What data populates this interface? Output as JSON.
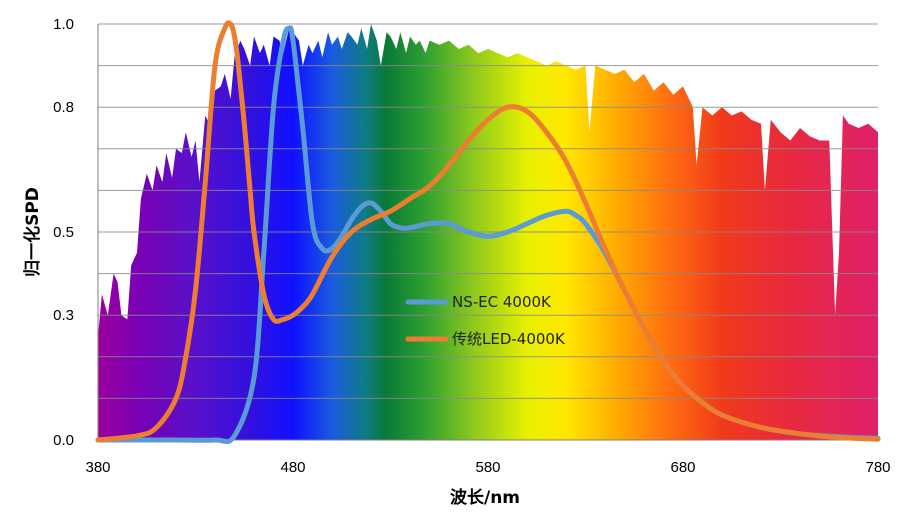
{
  "chart_data": {
    "type": "line",
    "xlabel": "波长/nm",
    "ylabel": "归一化SPD",
    "xlim": [
      380,
      780
    ],
    "ylim": [
      0.0,
      1.0
    ],
    "xticks": [
      "380",
      "480",
      "580",
      "680",
      "780"
    ],
    "yticks": [
      "0.0",
      "0.3",
      "0.5",
      "0.8",
      "1.0"
    ],
    "grid": true,
    "legend_position": "center",
    "background": "visible-spectrum color gradient filled under a solar-like reference spectrum",
    "series": [
      {
        "name": "NS-EC 4000K",
        "color": "#5b9bd5",
        "x": [
          380,
          400,
          420,
          440,
          450,
          460,
          465,
          470,
          475,
          478,
          480,
          485,
          490,
          495,
          500,
          505,
          510,
          515,
          520,
          525,
          530,
          535,
          540,
          550,
          560,
          570,
          580,
          590,
          600,
          610,
          620,
          625,
          630,
          640,
          650,
          660,
          670,
          680,
          690,
          700,
          720,
          740,
          760,
          780
        ],
        "y": [
          0.0,
          0.0,
          0.0,
          0.0,
          0.01,
          0.15,
          0.45,
          0.8,
          0.96,
          0.99,
          0.96,
          0.75,
          0.52,
          0.46,
          0.46,
          0.49,
          0.53,
          0.56,
          0.57,
          0.55,
          0.52,
          0.51,
          0.51,
          0.52,
          0.52,
          0.5,
          0.49,
          0.5,
          0.52,
          0.54,
          0.55,
          0.54,
          0.52,
          0.45,
          0.36,
          0.27,
          0.19,
          0.13,
          0.09,
          0.06,
          0.03,
          0.015,
          0.008,
          0.004
        ]
      },
      {
        "name": "传统LED-4000K",
        "color": "#ed7d31",
        "x": [
          380,
          400,
          410,
          420,
          425,
          430,
          435,
          440,
          445,
          448,
          450,
          452,
          455,
          458,
          460,
          465,
          470,
          475,
          480,
          485,
          490,
          500,
          510,
          520,
          530,
          540,
          550,
          560,
          570,
          580,
          590,
          600,
          610,
          620,
          630,
          640,
          650,
          660,
          670,
          680,
          690,
          700,
          720,
          740,
          760,
          780
        ],
        "y": [
          0.0,
          0.01,
          0.03,
          0.1,
          0.2,
          0.36,
          0.62,
          0.9,
          0.99,
          1.0,
          0.97,
          0.9,
          0.76,
          0.6,
          0.5,
          0.35,
          0.29,
          0.29,
          0.3,
          0.32,
          0.35,
          0.44,
          0.5,
          0.53,
          0.55,
          0.58,
          0.61,
          0.66,
          0.72,
          0.77,
          0.8,
          0.79,
          0.74,
          0.67,
          0.57,
          0.46,
          0.36,
          0.27,
          0.19,
          0.13,
          0.09,
          0.06,
          0.03,
          0.015,
          0.006,
          0.002
        ]
      }
    ],
    "reference_spectrum": {
      "x": [
        380,
        382,
        385,
        388,
        390,
        392,
        395,
        397,
        400,
        402,
        405,
        408,
        410,
        413,
        415,
        418,
        420,
        423,
        425,
        428,
        430,
        432,
        435,
        438,
        440,
        443,
        445,
        448,
        450,
        453,
        455,
        458,
        460,
        463,
        465,
        468,
        470,
        473,
        475,
        478,
        480,
        483,
        485,
        488,
        490,
        493,
        495,
        498,
        500,
        503,
        505,
        508,
        510,
        513,
        515,
        518,
        520,
        523,
        525,
        528,
        530,
        533,
        535,
        538,
        540,
        543,
        545,
        548,
        550,
        555,
        560,
        565,
        570,
        575,
        580,
        585,
        590,
        595,
        600,
        605,
        610,
        615,
        620,
        625,
        630,
        632,
        635,
        640,
        645,
        650,
        655,
        660,
        665,
        670,
        675,
        680,
        685,
        687,
        690,
        695,
        700,
        705,
        710,
        715,
        720,
        722,
        725,
        730,
        735,
        740,
        745,
        750,
        755,
        758,
        760,
        762,
        765,
        770,
        775,
        780
      ],
      "y": [
        0.25,
        0.35,
        0.3,
        0.4,
        0.38,
        0.3,
        0.29,
        0.42,
        0.45,
        0.58,
        0.64,
        0.6,
        0.66,
        0.62,
        0.69,
        0.63,
        0.7,
        0.69,
        0.74,
        0.68,
        0.72,
        0.62,
        0.78,
        0.75,
        0.84,
        0.85,
        0.88,
        0.82,
        0.92,
        0.96,
        0.94,
        0.9,
        0.97,
        0.93,
        0.95,
        0.9,
        0.97,
        0.96,
        0.93,
        0.99,
        0.98,
        0.96,
        0.9,
        0.95,
        0.93,
        0.96,
        0.92,
        0.98,
        0.95,
        0.97,
        0.94,
        0.98,
        0.97,
        0.95,
        0.99,
        0.94,
        1.0,
        0.96,
        0.9,
        0.98,
        0.97,
        0.94,
        0.98,
        0.93,
        0.97,
        0.95,
        0.96,
        0.93,
        0.96,
        0.95,
        0.96,
        0.94,
        0.95,
        0.93,
        0.94,
        0.93,
        0.92,
        0.93,
        0.92,
        0.91,
        0.9,
        0.91,
        0.9,
        0.89,
        0.9,
        0.74,
        0.9,
        0.89,
        0.88,
        0.89,
        0.86,
        0.88,
        0.84,
        0.86,
        0.83,
        0.85,
        0.8,
        0.66,
        0.8,
        0.78,
        0.8,
        0.78,
        0.79,
        0.77,
        0.76,
        0.6,
        0.77,
        0.74,
        0.72,
        0.75,
        0.73,
        0.72,
        0.72,
        0.3,
        0.45,
        0.78,
        0.76,
        0.75,
        0.76,
        0.74
      ]
    }
  }
}
